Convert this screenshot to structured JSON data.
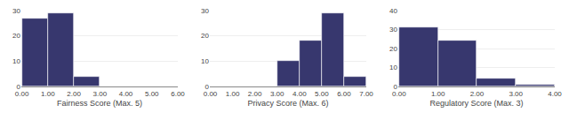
{
  "chart_data": [
    {
      "type": "histogram",
      "xlabel": "Fairness Score (Max. 5)",
      "bins": [
        0,
        1,
        2,
        3
      ],
      "values": [
        27,
        29,
        4
      ],
      "color": "#37376e",
      "xlim": [
        -0.02,
        6.0
      ],
      "xticks": [
        {
          "value": 0,
          "label": "0.00"
        },
        {
          "value": 1,
          "label": "1.00"
        },
        {
          "value": 2,
          "label": "2.00"
        },
        {
          "value": 3,
          "label": "3.00"
        },
        {
          "value": 4,
          "label": "4.00"
        },
        {
          "value": 5,
          "label": "5.00"
        },
        {
          "value": 6,
          "label": "6.00"
        }
      ],
      "ylim": [
        0,
        30
      ],
      "yticks": [
        0,
        10,
        20,
        30
      ],
      "grid": true
    },
    {
      "type": "histogram",
      "xlabel": "Privacy Score (Max. 6)",
      "bins": [
        3,
        4,
        5,
        6,
        7
      ],
      "values": [
        10,
        18,
        29,
        4
      ],
      "color": "#37376e",
      "xlim": [
        -0.02,
        7.0
      ],
      "xticks": [
        {
          "value": 0,
          "label": "0.00"
        },
        {
          "value": 1,
          "label": "1.00"
        },
        {
          "value": 2,
          "label": "2.00"
        },
        {
          "value": 3,
          "label": "3.00"
        },
        {
          "value": 4,
          "label": "4.00"
        },
        {
          "value": 5,
          "label": "5.00"
        },
        {
          "value": 6,
          "label": "6.00"
        },
        {
          "value": 7,
          "label": "7.00"
        }
      ],
      "ylim": [
        0,
        30
      ],
      "yticks": [
        0,
        10,
        20,
        30
      ],
      "grid": true
    },
    {
      "type": "histogram",
      "xlabel": "Regulatory Score (Max. 3)",
      "bins": [
        0,
        1,
        2,
        3,
        4
      ],
      "values": [
        31,
        24,
        4,
        1
      ],
      "color": "#37376e",
      "xlim": [
        -0.02,
        4.0
      ],
      "xticks": [
        {
          "value": 0,
          "label": "0.00"
        },
        {
          "value": 1,
          "label": "1.00"
        },
        {
          "value": 2,
          "label": "2.00"
        },
        {
          "value": 3,
          "label": "3.00"
        },
        {
          "value": 4,
          "label": "4.00"
        }
      ],
      "ylim": [
        0,
        40
      ],
      "yticks": [
        0,
        10,
        20,
        30,
        40
      ],
      "grid": true
    }
  ]
}
